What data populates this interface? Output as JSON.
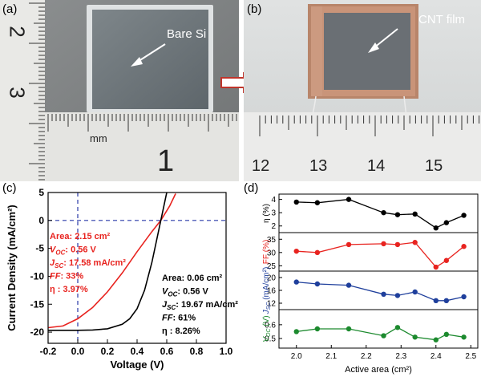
{
  "panels": {
    "a": {
      "label": "(a)",
      "annotation": "Bare Si",
      "ruler_numbers": [
        "2",
        "3",
        "1"
      ],
      "ruler_unit": "mm"
    },
    "b": {
      "label": "(b)",
      "annotation": "CNT film",
      "ruler_numbers": [
        "12",
        "13",
        "14",
        "15"
      ]
    },
    "c": {
      "label": "(c)"
    },
    "d": {
      "label": "(d)"
    }
  },
  "colors": {
    "red": "#e8231f",
    "black": "#000000",
    "blue": "#1f3f9c",
    "green": "#1c8a2e",
    "arrow": "#c0352b",
    "guide": "#2a3aa8"
  },
  "chart_data": [
    {
      "type": "line",
      "xlabel": "Voltage (V)",
      "ylabel": "Current Density (mA/cm²)",
      "xlim": [
        -0.2,
        1.0
      ],
      "ylim": [
        -22,
        5
      ],
      "xticks": [
        "-0.2",
        "0.0",
        "0.2",
        "0.4",
        "0.6",
        "0.8",
        "1.0"
      ],
      "yticks": [
        "5",
        "0",
        "-5",
        "-10",
        "-15",
        "-20"
      ],
      "series": [
        {
          "color": "#e8231f",
          "x": [
            -0.2,
            -0.1,
            0.0,
            0.1,
            0.2,
            0.3,
            0.4,
            0.5,
            0.56,
            0.62,
            0.66
          ],
          "y": [
            -19.2,
            -18.9,
            -17.6,
            -15.6,
            -12.8,
            -9.4,
            -5.6,
            -2.0,
            0.0,
            2.6,
            4.8
          ]
        },
        {
          "color": "#000000",
          "x": [
            -0.2,
            0.0,
            0.1,
            0.2,
            0.3,
            0.35,
            0.4,
            0.45,
            0.5,
            0.56,
            0.6,
            0.64
          ],
          "y": [
            -19.67,
            -19.67,
            -19.62,
            -19.4,
            -18.6,
            -17.6,
            -15.8,
            -12.5,
            -7.5,
            0.0,
            5.0,
            9.5
          ]
        }
      ],
      "annotations": {
        "red": [
          {
            "k": "Area",
            "v": ": 2.15 cm²"
          },
          {
            "k": "V",
            "sub": "OC",
            "v": ": 0.56 V"
          },
          {
            "k": "J",
            "sub": "SC",
            "v": ": 17.58 mA/cm²"
          },
          {
            "k": "FF",
            "v": ": 33%"
          },
          {
            "k": "η",
            "v": " : 3.97%"
          }
        ],
        "black": [
          {
            "k": "Area",
            "v": ": 0.06 cm²"
          },
          {
            "k": "V",
            "sub": "OC",
            "v": ": 0.56 V"
          },
          {
            "k": "J",
            "sub": "SC",
            "v": ": 19.67 mA/cm²"
          },
          {
            "k": "FF",
            "v": ": 61%"
          },
          {
            "k": "η",
            "v": " : 8.26%"
          }
        ]
      }
    },
    {
      "type": "line",
      "xlabel": "Active area (cm²)",
      "xlim": [
        1.95,
        2.52
      ],
      "xticks": [
        "2.0",
        "2.1",
        "2.2",
        "2.3",
        "2.4",
        "2.5"
      ],
      "x": [
        2.0,
        2.06,
        2.15,
        2.25,
        2.29,
        2.34,
        2.4,
        2.43,
        2.48
      ],
      "subplots": [
        {
          "ylabel": "η (%)",
          "color": "#000000",
          "ylim": [
            1.5,
            4.4
          ],
          "yticks": [
            "2",
            "3",
            "4"
          ],
          "values": [
            3.8,
            3.75,
            4.0,
            3.0,
            2.85,
            2.9,
            1.85,
            2.25,
            2.8
          ]
        },
        {
          "ylabel": "FF (%)",
          "color": "#e8231f",
          "ylim": [
            23,
            37.5
          ],
          "yticks": [
            "25",
            "30",
            "35"
          ],
          "values": [
            30.5,
            30,
            33,
            33.3,
            33,
            33.8,
            24.5,
            27,
            32.3
          ]
        },
        {
          "ylabel": "J_SC (mA/cm²)",
          "color": "#1f3f9c",
          "ylim": [
            10,
            22
          ],
          "yticks": [
            "12",
            "16",
            "20"
          ],
          "values": [
            18.6,
            18,
            17.6,
            14.8,
            14.4,
            15.5,
            12.8,
            12.8,
            14
          ]
        },
        {
          "ylabel": "V_OC (V)",
          "color": "#1c8a2e",
          "ylim": [
            0.43,
            0.71
          ],
          "yticks": [
            "0.5",
            "0.6"
          ],
          "values": [
            0.55,
            0.57,
            0.57,
            0.52,
            0.58,
            0.51,
            0.49,
            0.53,
            0.51
          ]
        }
      ]
    }
  ]
}
